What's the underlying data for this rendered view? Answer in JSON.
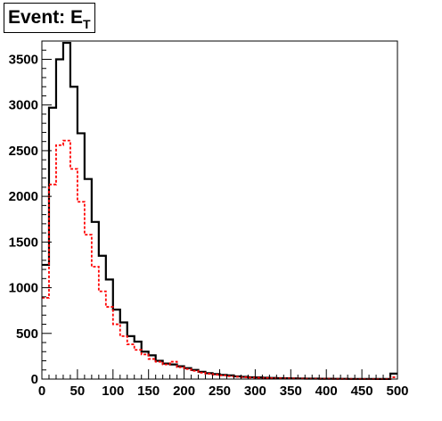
{
  "chart_data": {
    "type": "histogram",
    "title_main": "Event: E",
    "title_sub": "T",
    "xlim": [
      0,
      500
    ],
    "ylim": [
      0,
      3700
    ],
    "bin_width": 10,
    "x_ticks": [
      0,
      50,
      100,
      150,
      200,
      250,
      300,
      350,
      400,
      450,
      500
    ],
    "y_ticks": [
      0,
      500,
      1000,
      1500,
      2000,
      2500,
      3000,
      3500
    ],
    "series": [
      {
        "color": "#000000",
        "style": "solid",
        "values": [
          1250,
          2970,
          3500,
          3680,
          3200,
          2690,
          2190,
          1720,
          1350,
          1090,
          760,
          620,
          470,
          410,
          300,
          260,
          200,
          170,
          160,
          140,
          120,
          100,
          80,
          65,
          55,
          45,
          40,
          30,
          25,
          20,
          18,
          15,
          12,
          10,
          9,
          8,
          6,
          5,
          5,
          4,
          4,
          3,
          3,
          2,
          2,
          2,
          2,
          1,
          1,
          60
        ]
      },
      {
        "color": "#ff0000",
        "style": "dashed",
        "values": [
          890,
          2130,
          2560,
          2610,
          2300,
          1940,
          1580,
          1230,
          960,
          790,
          600,
          470,
          380,
          320,
          270,
          220,
          190,
          160,
          190,
          130,
          110,
          90,
          70,
          58,
          48,
          40,
          32,
          25,
          20,
          16,
          14,
          12,
          10,
          8,
          7,
          6,
          5,
          4,
          4,
          3,
          3,
          2,
          2,
          2,
          1,
          1,
          1,
          1,
          1,
          20
        ]
      }
    ]
  }
}
